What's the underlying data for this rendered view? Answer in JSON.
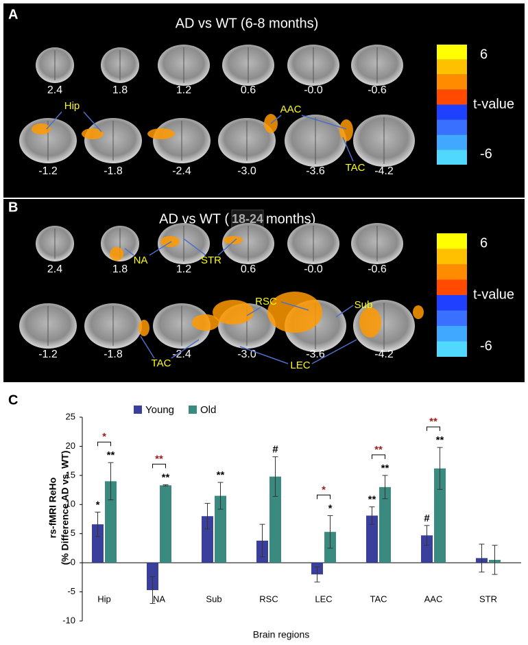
{
  "panel_a": {
    "label": "A",
    "title": "AD vs WT (6-8 months)",
    "slices": [
      "2.4",
      "1.8",
      "1.2",
      "0.6",
      "-0.0",
      "-0.6",
      "-1.2",
      "-1.8",
      "-2.4",
      "-3.0",
      "-3.6",
      "-4.2"
    ],
    "colorbar": {
      "max": "6",
      "label": "t-value",
      "min": "-6"
    },
    "regions": [
      "Hip",
      "AAC",
      "TAC"
    ]
  },
  "panel_b": {
    "label": "B",
    "title_parts": [
      "AD vs WT (",
      "18-24",
      "months)"
    ],
    "slices": [
      "2.4",
      "1.8",
      "1.2",
      "0.6",
      "-0.0",
      "-0.6",
      "-1.2",
      "-1.8",
      "-2.4",
      "-3.0",
      "-3.6",
      "-4.2"
    ],
    "colorbar": {
      "max": "6",
      "label": "t-value",
      "min": "-6"
    },
    "regions": [
      "NA",
      "STR",
      "RSC",
      "Sub",
      "TAC",
      "LEC"
    ]
  },
  "chart_data": {
    "type": "bar",
    "panel_label": "C",
    "categories": [
      "Hip",
      "NA",
      "Sub",
      "RSC",
      "LEC",
      "TAC",
      "AAC",
      "STR"
    ],
    "series": [
      {
        "name": "Young",
        "color": "#3b3f9c",
        "values": [
          6.6,
          -4.7,
          8.0,
          3.8,
          -2.0,
          8.1,
          4.7,
          0.8
        ],
        "errors": [
          2.1,
          2.3,
          2.2,
          2.8,
          1.3,
          1.5,
          1.7,
          2.4
        ],
        "sig_labels": [
          "*",
          null,
          null,
          null,
          null,
          "**",
          "#",
          null
        ]
      },
      {
        "name": "Old",
        "color": "#3a8a80",
        "values": [
          14.0,
          13.3,
          11.5,
          14.8,
          5.3,
          13.0,
          16.2,
          0.5
        ],
        "errors": [
          3.2,
          0.1,
          2.3,
          3.4,
          2.8,
          2.0,
          3.6,
          2.5
        ],
        "sig_labels": [
          "**",
          "**",
          "**",
          "#",
          "*",
          "**",
          "**",
          null
        ]
      }
    ],
    "bracket_labels": [
      "*",
      "**",
      null,
      null,
      "*",
      "**",
      "**",
      null
    ],
    "bracket_color": "#9b1c1c",
    "ylim": [
      -10,
      25
    ],
    "yticks": [
      -10,
      -5,
      0,
      5,
      10,
      15,
      20,
      25
    ],
    "y_label_lines": [
      "rs-fMRI ReHo",
      "(% Difference  AD vs. WT)"
    ],
    "x_label": "Brain regions"
  }
}
